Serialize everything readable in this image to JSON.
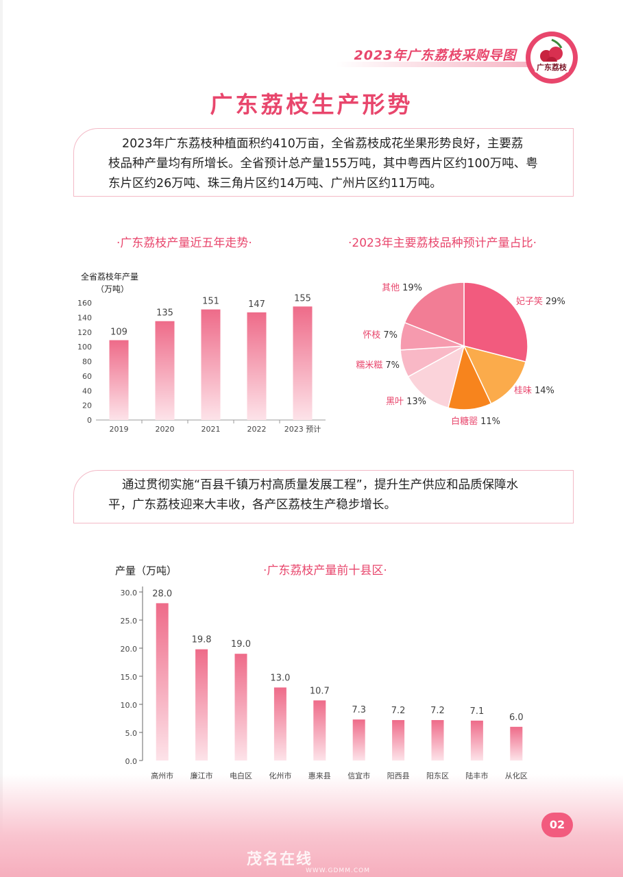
{
  "header": {
    "title": "2023年广东荔枝采购导图"
  },
  "logo": {
    "label": "广东荔枝"
  },
  "page_title": "广东荔枝生产形势",
  "intro": {
    "lines": [
      "2023年广东荔枝种植面积约410万亩，全省荔枝成花坐果形势良好，主要荔",
      "枝品种产量均有所增长。全省预计总产量155万吨，其中粤西片区约100万吨、粤",
      "东片区约26万吨、珠三角片区约14万吨、广州片区约11万吨。"
    ]
  },
  "middle_text": {
    "lines": [
      "通过贯彻实施“百县千镇万村高质量发展工程”，提升生产供应和品质保障水",
      "平，广东荔枝迎来大丰收，各产区荔枝生产稳步增长。"
    ]
  },
  "colors": {
    "accent": "#e8466c",
    "bar_top": "#ee6b89",
    "bar_bottom": "#fde3e9"
  },
  "page_number": "02",
  "watermark": {
    "name": "茂名在线",
    "url": "WWW.GDMM.COM"
  },
  "chart_data": [
    {
      "type": "bar",
      "title": "·广东荔枝产量近五年走势·",
      "ylabel_line1": "全省荔枝年产量",
      "ylabel_line2": "（万吨）",
      "categories": [
        "2019",
        "2020",
        "2021",
        "2022",
        "2023 预计"
      ],
      "values": [
        109,
        135,
        151,
        147,
        155
      ],
      "value_labels": [
        "109",
        "135",
        "151",
        "147",
        "155"
      ],
      "yticks": [
        "0",
        "20",
        "40",
        "60",
        "80",
        "100",
        "120",
        "140",
        "160"
      ],
      "ylim": [
        0,
        160
      ]
    },
    {
      "type": "pie",
      "title": "·2023年主要荔枝品种预计产量占比·",
      "slices": [
        {
          "name": "妃子笑",
          "value": 29,
          "label": "29%",
          "color": "#f25b7e"
        },
        {
          "name": "桂味",
          "value": 14,
          "label": "14%",
          "color": "#fbab4b"
        },
        {
          "name": "白糖罂",
          "value": 11,
          "label": "11%",
          "color": "#f7841d"
        },
        {
          "name": "黑叶",
          "value": 13,
          "label": "13%",
          "color": "#fbd3da"
        },
        {
          "name": "糯米糍",
          "value": 7,
          "label": "7%",
          "color": "#f9b8c6"
        },
        {
          "name": "怀枝",
          "value": 7,
          "label": "7%",
          "color": "#f69aae"
        },
        {
          "name": "其他",
          "value": 19,
          "label": "19%",
          "color": "#f27d95"
        }
      ]
    },
    {
      "type": "bar",
      "title": "·广东荔枝产量前十县区·",
      "ylabel": "产量（万吨）",
      "categories": [
        "高州市",
        "廉江市",
        "电白区",
        "化州市",
        "惠来县",
        "信宜市",
        "阳西县",
        "阳东区",
        "陆丰市",
        "从化区"
      ],
      "values": [
        28.0,
        19.8,
        19.0,
        13.0,
        10.7,
        7.3,
        7.2,
        7.2,
        7.1,
        6.0
      ],
      "value_labels": [
        "28.0",
        "19.8",
        "19.0",
        "13.0",
        "10.7",
        "7.3",
        "7.2",
        "7.2",
        "7.1",
        "6.0"
      ],
      "yticks": [
        "0.0",
        "5.0",
        "10.0",
        "15.0",
        "20.0",
        "25.0",
        "30.0"
      ],
      "ylim": [
        0,
        30
      ]
    }
  ]
}
